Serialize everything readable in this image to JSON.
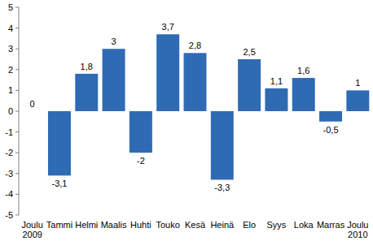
{
  "chart_data": {
    "type": "bar",
    "categories": [
      "Joulu\n2009",
      "Tammi",
      "Helmi",
      "Maalis",
      "Huhti",
      "Touko",
      "Kesä",
      "Heinä",
      "Elo",
      "Syys",
      "Loka",
      "Marras",
      "Joulu\n2010"
    ],
    "values": [
      0,
      -3.1,
      1.8,
      3,
      -2,
      3.7,
      2.8,
      -3.3,
      2.5,
      1.1,
      1.6,
      -0.5,
      1
    ],
    "value_labels": [
      "0",
      "-3,1",
      "1,8",
      "3",
      "-2",
      "3,7",
      "2,8",
      "-3,3",
      "2,5",
      "1,1",
      "1,6",
      "-0,5",
      "1"
    ],
    "data_labels": true,
    "color": "#2f6bb5",
    "ylim": [
      -5,
      5
    ],
    "yticks": [
      -5,
      -4,
      -3,
      -2,
      -1,
      0,
      1,
      2,
      3,
      4,
      5
    ],
    "grid": false
  }
}
